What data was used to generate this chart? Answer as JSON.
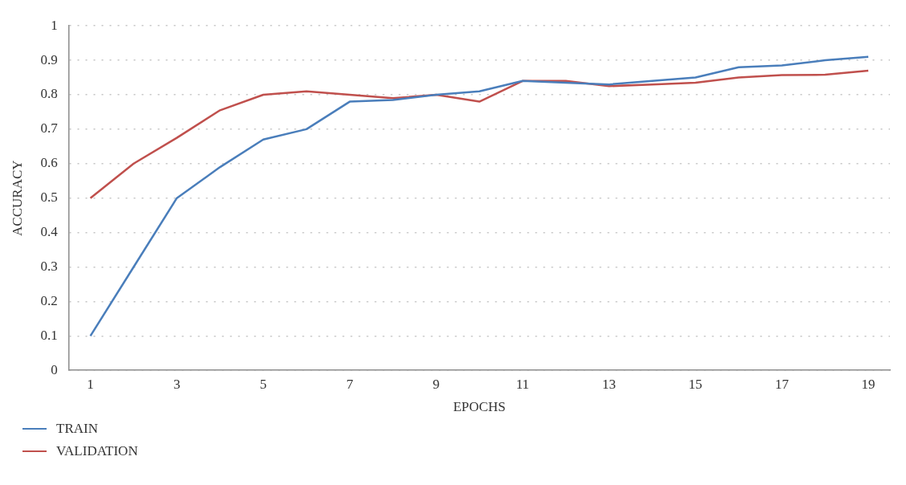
{
  "chart_data": {
    "type": "line",
    "xlabel": "EPOCHS",
    "ylabel": "ACCURACY",
    "x": [
      1,
      2,
      3,
      4,
      5,
      6,
      7,
      8,
      9,
      10,
      11,
      12,
      13,
      14,
      15,
      16,
      17,
      18,
      19
    ],
    "xlim": [
      0.5,
      19.5
    ],
    "xticks": [
      1,
      3,
      5,
      7,
      9,
      11,
      13,
      15,
      17,
      19
    ],
    "series": [
      {
        "name": "TRAIN",
        "color": "#4a7ebb",
        "values": [
          0.1,
          0.3,
          0.5,
          0.59,
          0.67,
          0.7,
          0.78,
          0.785,
          0.8,
          0.81,
          0.84,
          0.835,
          0.83,
          0.84,
          0.85,
          0.88,
          0.885,
          0.9,
          0.91
        ]
      },
      {
        "name": "VALIDATION",
        "color": "#c0504d",
        "values": [
          0.5,
          0.6,
          0.675,
          0.755,
          0.8,
          0.81,
          0.8,
          0.79,
          0.8,
          0.78,
          0.84,
          0.84,
          0.825,
          0.83,
          0.835,
          0.85,
          0.857,
          0.858,
          0.87
        ]
      }
    ],
    "ylim": [
      0,
      1
    ],
    "yticks": [
      0,
      0.1,
      0.2,
      0.3,
      0.4,
      0.5,
      0.6,
      0.7,
      0.8,
      0.9,
      1
    ],
    "grid": "y",
    "legend": "bottom left",
    "marker": "none",
    "line_style": "solid"
  }
}
